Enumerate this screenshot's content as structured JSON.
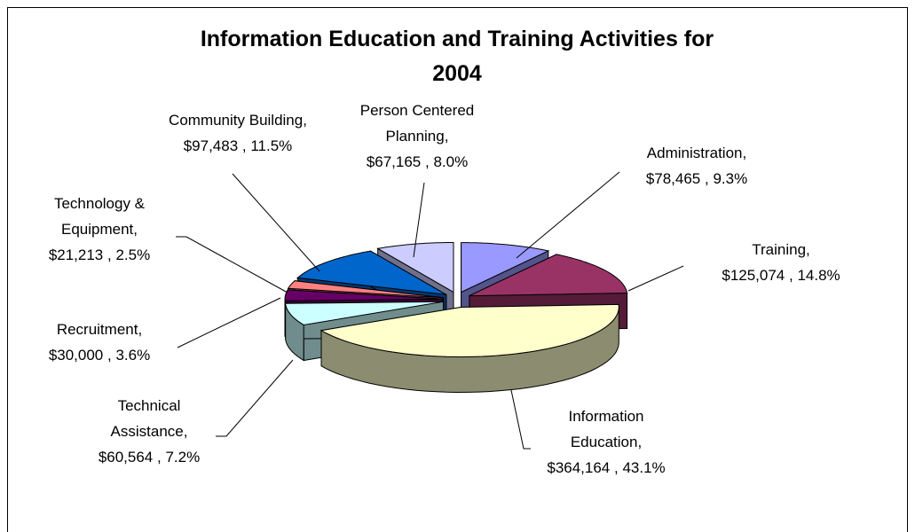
{
  "chart_data": {
    "type": "pie",
    "title": "Information Education and Training Activities for 2004",
    "categories": [
      "Administration,",
      "Training,",
      "Information Education,",
      "Technical Assistance,",
      "Recruitment,",
      "Technology & Equipment,",
      "Community Building,",
      "Person Centered Planning,"
    ],
    "values": [
      78465,
      125074,
      364164,
      60564,
      30000,
      21213,
      97483,
      67165
    ],
    "value_labels": [
      "$78,465",
      "$125,074",
      "$364,164",
      "$60,564",
      "$30,000",
      "$21,213",
      "$97,483",
      "$67,165"
    ],
    "label_separator": " , ",
    "percentages": [
      9.3,
      14.8,
      43.1,
      7.2,
      3.6,
      2.5,
      11.5,
      8.0
    ],
    "percentage_labels": [
      "9.3%",
      "14.8%",
      "43.1%",
      "7.2%",
      "3.6%",
      "2.5%",
      "11.5%",
      "8.0%"
    ],
    "colors": [
      "#9999ff",
      "#993366",
      "#ffffcc",
      "#ccffff",
      "#660066",
      "#ff8080",
      "#0066cc",
      "#ccccff"
    ]
  }
}
